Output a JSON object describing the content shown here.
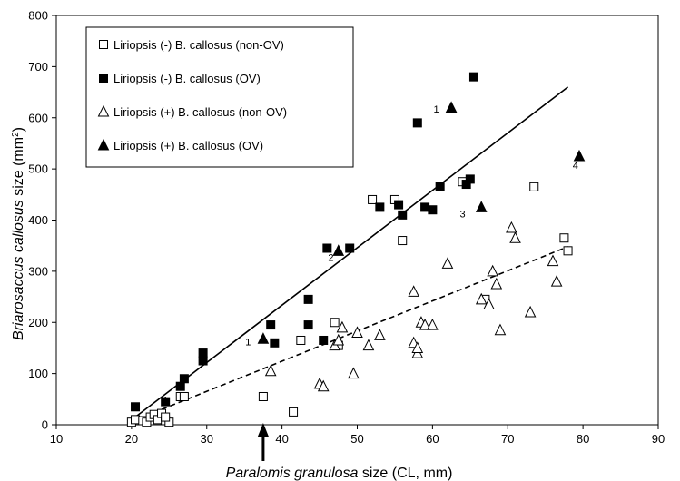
{
  "chart_data": {
    "type": "scatter",
    "xlabel": {
      "parts": [
        "Paralomis granulosa",
        "  size (CL, mm)"
      ],
      "italic": [
        true,
        false
      ]
    },
    "ylabel": {
      "parts": [
        "Briarosaccus callosus",
        " size (mm",
        "2",
        ")"
      ],
      "italic": [
        true,
        false,
        false,
        false
      ],
      "superscript": [
        false,
        false,
        true,
        false
      ]
    },
    "xlim": [
      10,
      90
    ],
    "ylim": [
      0,
      800
    ],
    "xticks": [
      10,
      20,
      30,
      40,
      50,
      60,
      70,
      80,
      90
    ],
    "yticks": [
      0,
      100,
      200,
      300,
      400,
      500,
      600,
      700,
      800
    ],
    "arrow_x": 37.5,
    "series": [
      {
        "name": "Liriopsis (-)  B. callosus (non-OV)",
        "marker": "square-open",
        "points": [
          [
            20,
            5
          ],
          [
            20.5,
            10
          ],
          [
            21.5,
            8
          ],
          [
            22,
            5
          ],
          [
            22.5,
            15
          ],
          [
            23,
            20
          ],
          [
            23.5,
            10
          ],
          [
            24,
            22
          ],
          [
            24.5,
            8
          ],
          [
            25,
            5
          ],
          [
            24.5,
            15
          ],
          [
            26.5,
            55
          ],
          [
            27,
            55
          ],
          [
            37.5,
            55
          ],
          [
            41.5,
            25
          ],
          [
            42.5,
            165
          ],
          [
            47,
            200
          ],
          [
            47.5,
            155
          ],
          [
            52,
            440
          ],
          [
            55,
            440
          ],
          [
            56,
            360
          ],
          [
            64,
            475
          ],
          [
            73.5,
            465
          ],
          [
            67,
            245
          ],
          [
            77.5,
            365
          ],
          [
            78,
            340
          ]
        ]
      },
      {
        "name": "Liriopsis (-)  B. callosus (OV)",
        "marker": "square-filled",
        "points": [
          [
            20.5,
            35
          ],
          [
            24.5,
            45
          ],
          [
            26.5,
            75
          ],
          [
            27,
            90
          ],
          [
            29.5,
            125
          ],
          [
            29.5,
            140
          ],
          [
            38.5,
            195
          ],
          [
            39,
            160
          ],
          [
            43.5,
            245
          ],
          [
            43.5,
            195
          ],
          [
            45.5,
            165
          ],
          [
            46,
            345
          ],
          [
            49,
            345
          ],
          [
            53,
            425
          ],
          [
            55.5,
            430
          ],
          [
            56,
            410
          ],
          [
            58,
            590
          ],
          [
            59,
            425
          ],
          [
            60,
            420
          ],
          [
            61,
            465
          ],
          [
            64.5,
            470
          ],
          [
            65,
            480
          ],
          [
            65.5,
            680
          ]
        ]
      },
      {
        "name": "Liriopsis (+)  B. callosus (non-OV)",
        "marker": "triangle-open",
        "points": [
          [
            38.5,
            105
          ],
          [
            45,
            80
          ],
          [
            45.5,
            75
          ],
          [
            47,
            155
          ],
          [
            47.5,
            165
          ],
          [
            48,
            190
          ],
          [
            49.5,
            100
          ],
          [
            50,
            180
          ],
          [
            51.5,
            155
          ],
          [
            53,
            175
          ],
          [
            57.5,
            260
          ],
          [
            57.5,
            160
          ],
          [
            58,
            140
          ],
          [
            58,
            150
          ],
          [
            58.5,
            200
          ],
          [
            59,
            195
          ],
          [
            60,
            195
          ],
          [
            62,
            315
          ],
          [
            66.5,
            245
          ],
          [
            67.5,
            235
          ],
          [
            68,
            300
          ],
          [
            68.5,
            275
          ],
          [
            69,
            185
          ],
          [
            70.5,
            385
          ],
          [
            71,
            365
          ],
          [
            73,
            220
          ],
          [
            76,
            320
          ],
          [
            76.5,
            280
          ]
        ]
      },
      {
        "name": "Liriopsis (+)  B. callosus (OV)",
        "marker": "triangle-filled",
        "points": [
          [
            37.5,
            168
          ],
          [
            47.5,
            340
          ],
          [
            62.5,
            620
          ],
          [
            66.5,
            425
          ],
          [
            79.5,
            525
          ]
        ]
      }
    ],
    "point_labels": [
      {
        "text": "1",
        "x": 60.5,
        "y": 610
      },
      {
        "text": "2",
        "x": 46.5,
        "y": 320
      },
      {
        "text": "3",
        "x": 64,
        "y": 405
      },
      {
        "text": "4",
        "x": 79,
        "y": 500
      },
      {
        "text": "1",
        "x": 35.5,
        "y": 155
      },
      {
        "text": "1",
        "x": 24.5,
        "y": 42
      }
    ],
    "trendlines": [
      {
        "style": "solid",
        "from": [
          20.5,
          15
        ],
        "to": [
          78,
          660
        ]
      },
      {
        "style": "dashed",
        "from": [
          24,
          30
        ],
        "to": [
          78,
          348
        ]
      }
    ],
    "legend_position": "top-left"
  }
}
